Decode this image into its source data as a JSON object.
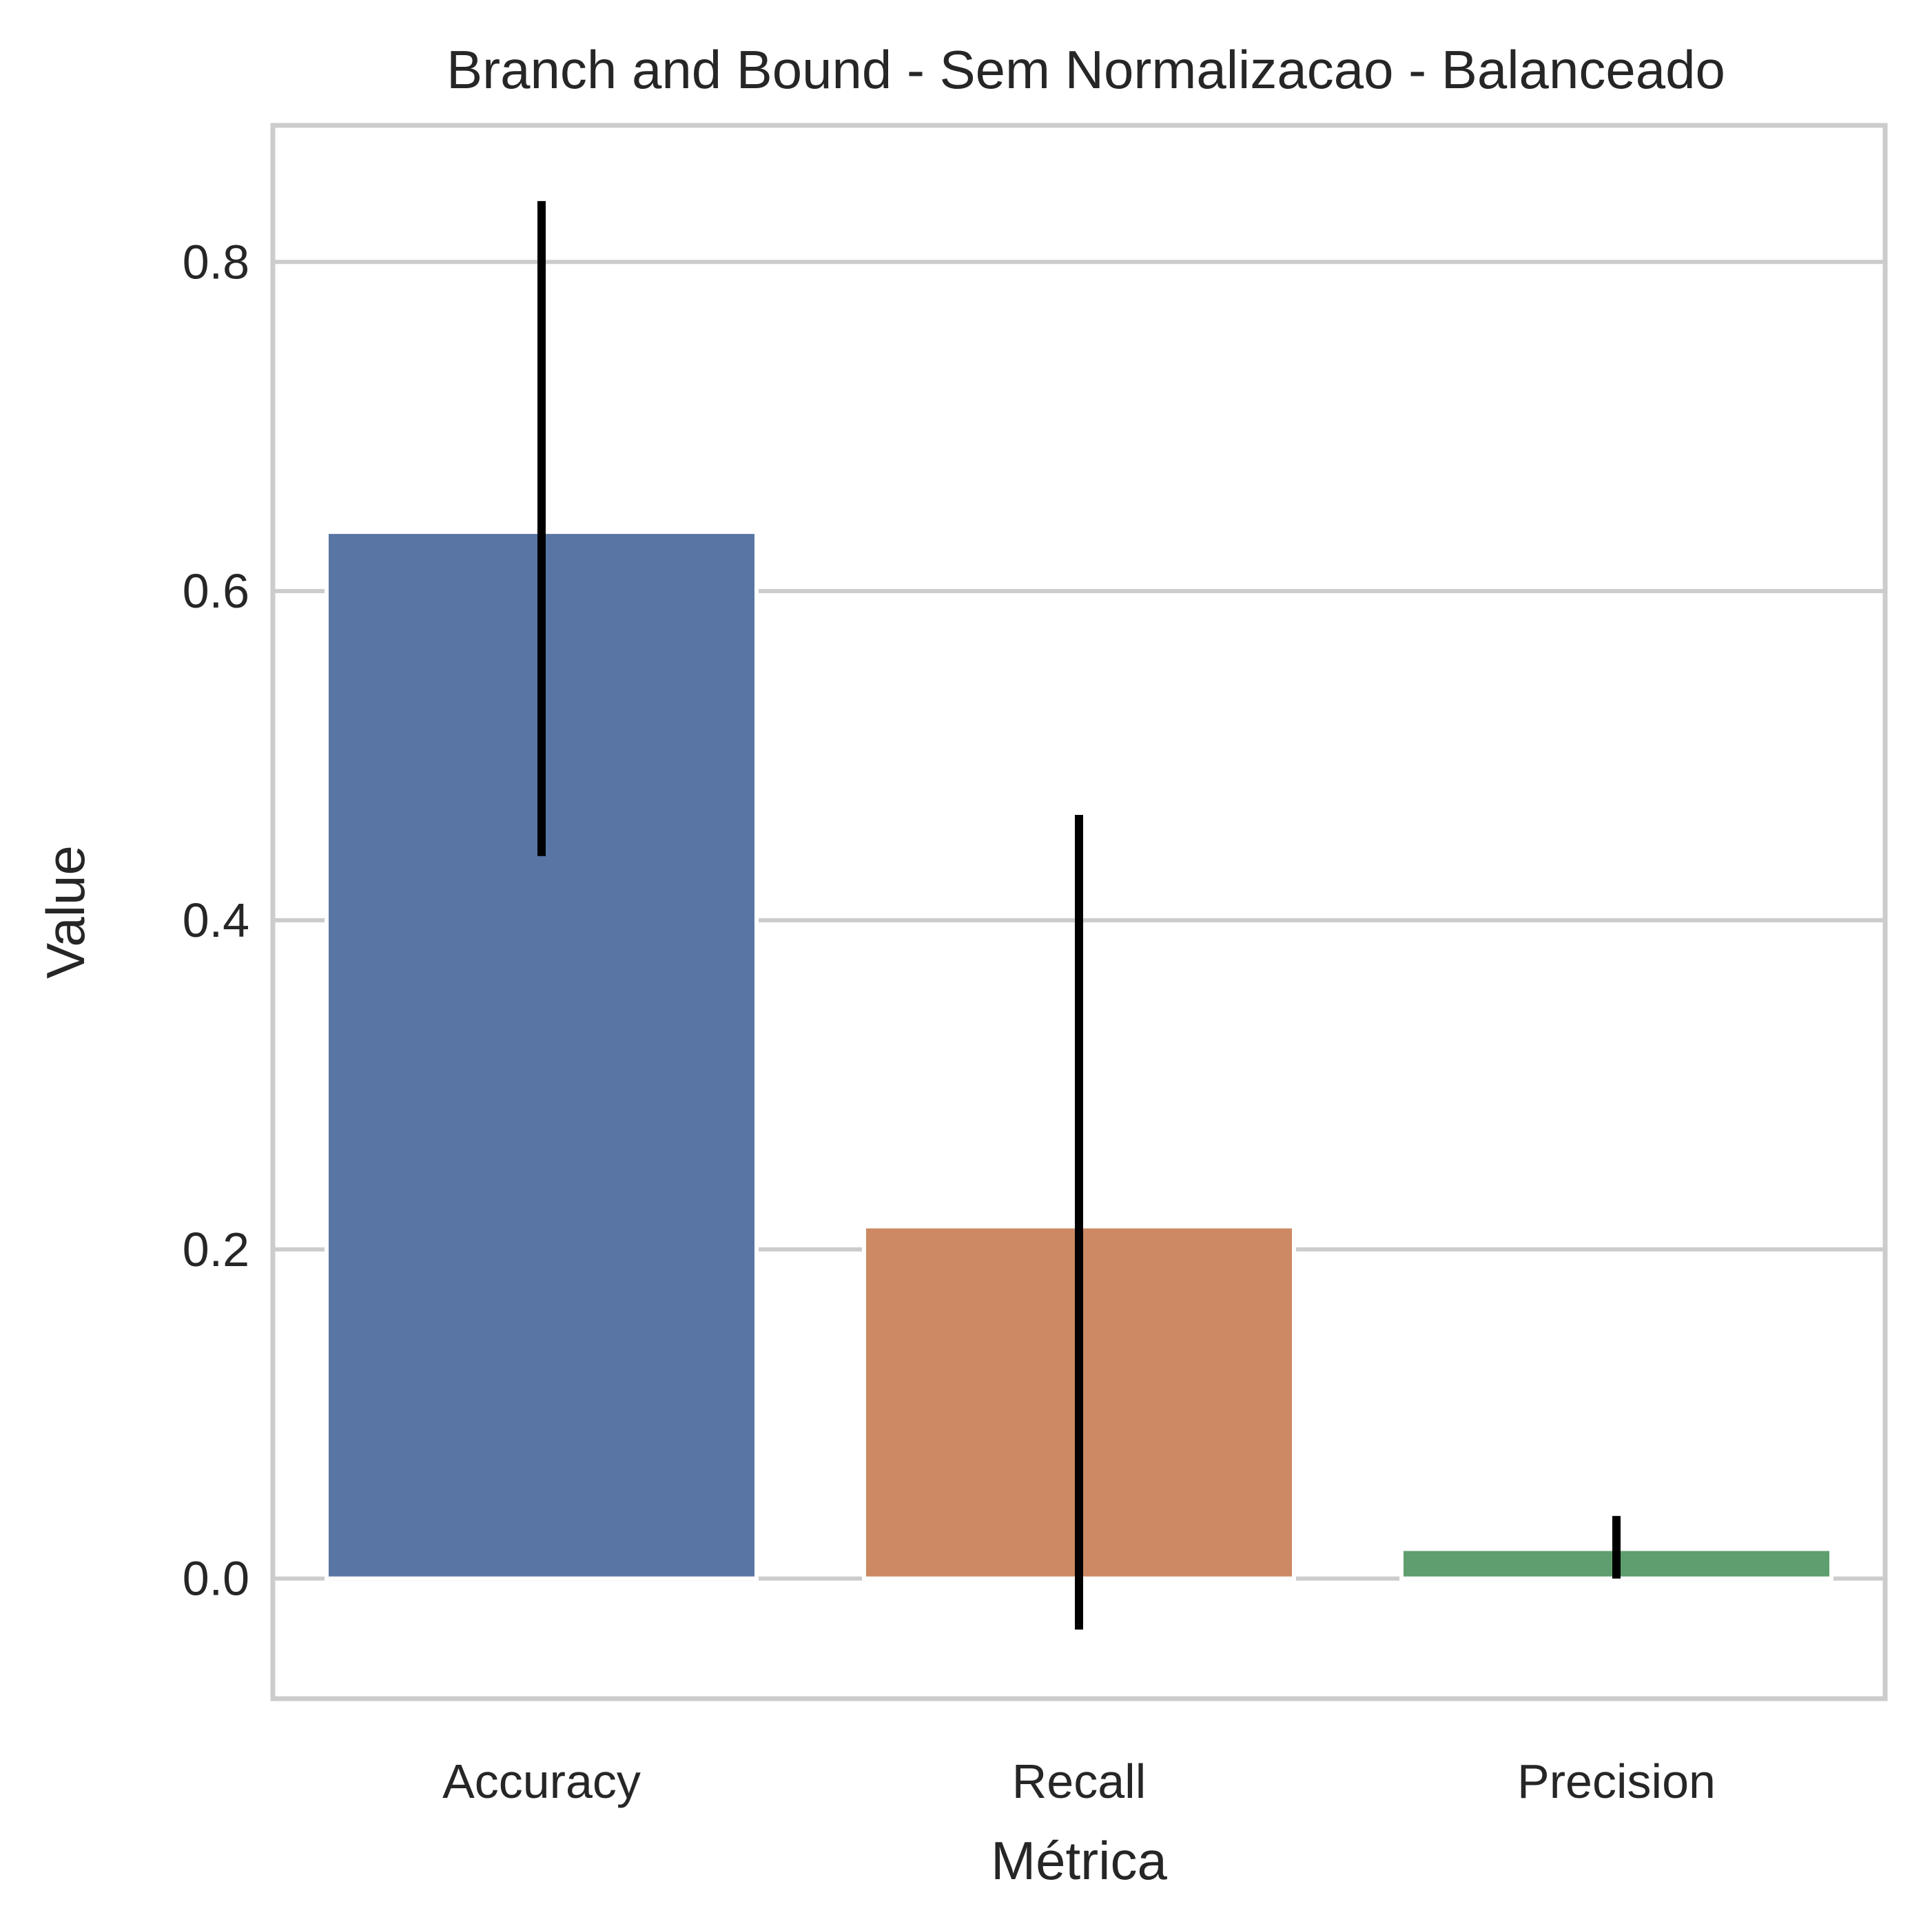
{
  "chart_data": {
    "type": "bar",
    "title": "Branch and Bound - Sem Normalizacao - Balanceado",
    "xlabel": "Métrica",
    "ylabel": "Value",
    "categories": [
      "Accuracy",
      "Recall",
      "Precision"
    ],
    "values": [
      0.636,
      0.214,
      0.018
    ],
    "error_bars": [
      {
        "low": 0.439,
        "high": 0.837
      },
      {
        "low": -0.031,
        "high": 0.464
      },
      {
        "low": 0.0,
        "high": 0.038
      }
    ],
    "colors": [
      "#5975a4",
      "#cc8963",
      "#5f9e6e"
    ],
    "error_color": "#000000",
    "ylim": [
      -0.073,
      0.883
    ],
    "yticks": [
      0.0,
      0.2,
      0.4,
      0.6,
      0.8
    ],
    "ytick_labels": [
      "0.0",
      "0.2",
      "0.4",
      "0.6",
      "0.8"
    ],
    "grid": true,
    "grid_axis": "y",
    "legend": false
  }
}
